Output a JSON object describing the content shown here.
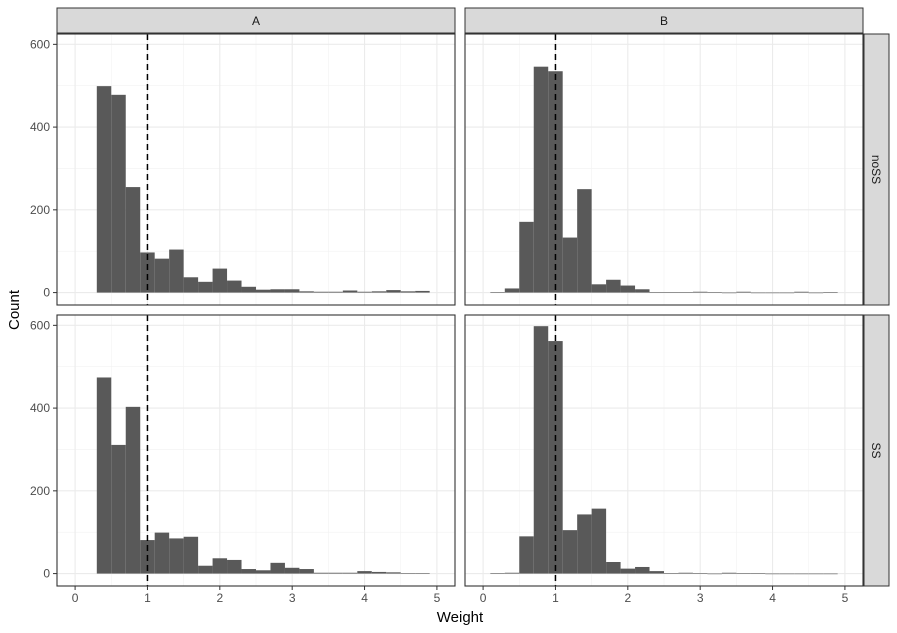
{
  "chart_data": {
    "type": "bar",
    "subtype": "faceted-histogram",
    "xlabel": "Weight",
    "ylabel": "Count",
    "xlim": [
      -0.25,
      5.25
    ],
    "ylim": [
      -30,
      625
    ],
    "x_ticks": [
      0,
      1,
      2,
      3,
      4,
      5
    ],
    "y_ticks": [
      0,
      200,
      400,
      600
    ],
    "binwidth": 0.2,
    "reference_line_x": 1,
    "col_facets": [
      "A",
      "B"
    ],
    "row_facets": [
      "noSS",
      "SS"
    ],
    "grid": true,
    "bar_color": "#595959",
    "panels": [
      {
        "col": "A",
        "row": "noSS",
        "bins_start": [
          0.3,
          0.5,
          0.7,
          0.9,
          1.1,
          1.3,
          1.5,
          1.7,
          1.9,
          2.1,
          2.3,
          2.5,
          2.7,
          2.9,
          3.1,
          3.3,
          3.5,
          3.7,
          3.9,
          4.1,
          4.3,
          4.5,
          4.7
        ],
        "counts": [
          499,
          478,
          255,
          97,
          82,
          104,
          37,
          26,
          58,
          29,
          14,
          7,
          8,
          8,
          3,
          2,
          2,
          5,
          2,
          3,
          6,
          3,
          4
        ]
      },
      {
        "col": "B",
        "row": "noSS",
        "bins_start": [
          0.1,
          0.3,
          0.5,
          0.7,
          0.9,
          1.1,
          1.3,
          1.5,
          1.7,
          1.9,
          2.1,
          2.3,
          2.5,
          2.7,
          2.9,
          3.1,
          3.3,
          3.5,
          3.7,
          3.9,
          4.1,
          4.3,
          4.5,
          4.7
        ],
        "counts": [
          1,
          10,
          171,
          546,
          535,
          133,
          250,
          20,
          31,
          17,
          8,
          1,
          1,
          1,
          2,
          1,
          0,
          2,
          0,
          0,
          0,
          2,
          0,
          1
        ]
      },
      {
        "col": "A",
        "row": "SS",
        "bins_start": [
          0.3,
          0.5,
          0.7,
          0.9,
          1.1,
          1.3,
          1.5,
          1.7,
          1.9,
          2.1,
          2.3,
          2.5,
          2.7,
          2.9,
          3.1,
          3.3,
          3.5,
          3.7,
          3.9,
          4.1,
          4.3,
          4.5,
          4.7
        ],
        "counts": [
          474,
          311,
          403,
          81,
          99,
          85,
          89,
          19,
          37,
          33,
          11,
          8,
          26,
          14,
          11,
          2,
          2,
          2,
          6,
          4,
          3,
          1,
          1
        ]
      },
      {
        "col": "B",
        "row": "SS",
        "bins_start": [
          0.1,
          0.3,
          0.5,
          0.7,
          0.9,
          1.1,
          1.3,
          1.5,
          1.7,
          1.9,
          2.1,
          2.3,
          2.5,
          2.7,
          2.9,
          3.1,
          3.3,
          3.5,
          3.7,
          3.9,
          4.1,
          4.3,
          4.5,
          4.7
        ],
        "counts": [
          1,
          2,
          90,
          598,
          562,
          105,
          143,
          157,
          28,
          12,
          16,
          6,
          1,
          2,
          1,
          0,
          2,
          1,
          1,
          0,
          0,
          0,
          0,
          0
        ]
      }
    ]
  }
}
